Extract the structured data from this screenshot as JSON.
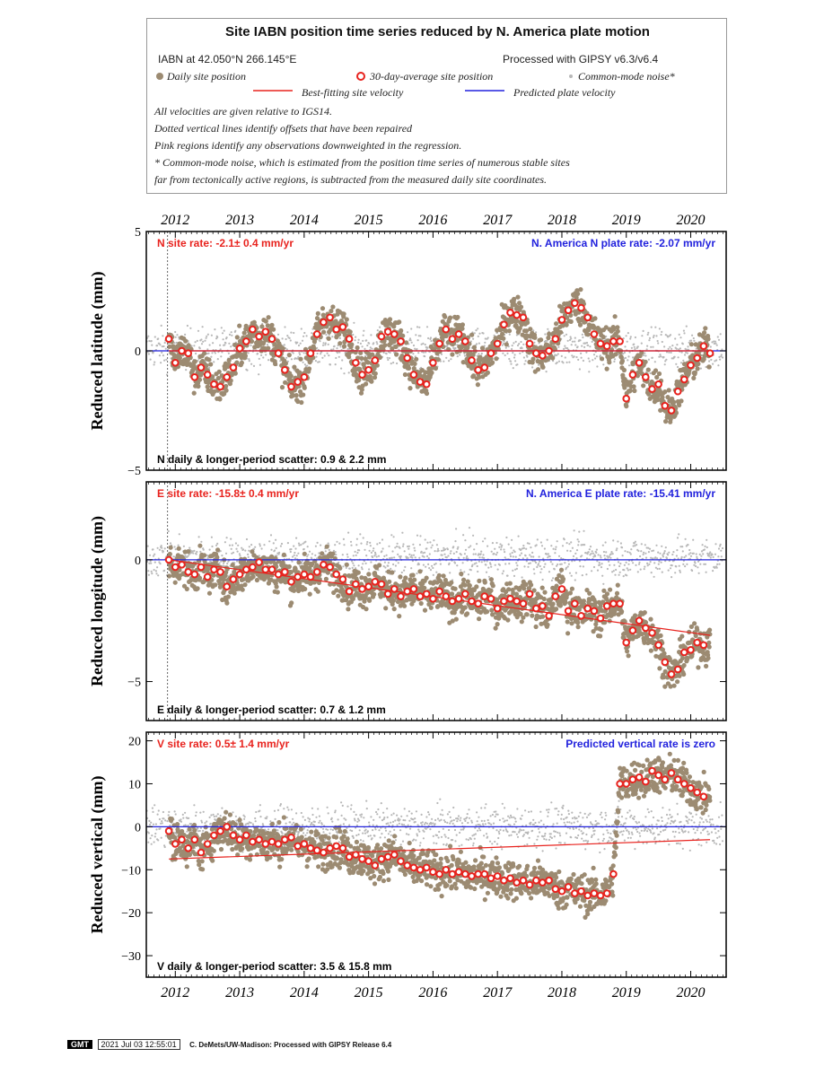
{
  "legend": {
    "title": "Site IABN position time series reduced by N. America plate motion",
    "site_location": "IABN at 42.050°N 266.145°E",
    "processing": "Processed with GIPSY v6.3/v6.4",
    "daily_label": "Daily site position",
    "avg_label": "30-day-average site position",
    "cm_label": "Common-mode noise*",
    "fit_label": "Best-fitting site velocity",
    "plate_label": "Predicted plate velocity",
    "notes": [
      "All velocities are given relative to IGS14.",
      "Dotted vertical lines identify offsets that have been repaired",
      "Pink regions identify any observations downweighted in the regression.",
      "* Common-mode noise, which is estimated from the position time series of numerous stable sites",
      "far from tectonically active regions, is subtracted from the measured daily site coordinates."
    ]
  },
  "colors": {
    "daily": "#9c8b72",
    "common_mode": "#b8b8b8",
    "average": "#e8231e",
    "fit": "#e8231e",
    "plate": "#2222dd",
    "rate_text": "#e8231e",
    "plate_text": "#2222dd"
  },
  "chart_data": [
    {
      "type": "scatter",
      "component": "N",
      "ylabel": "Reduced latitude (mm)",
      "xlim": [
        2011.55,
        2020.55
      ],
      "ylim": [
        -5,
        5
      ],
      "yticks": [
        -5,
        0,
        5
      ],
      "xticks": [
        2012,
        2013,
        2014,
        2015,
        2016,
        2017,
        2018,
        2019,
        2020
      ],
      "site_rate": "N site rate:  -2.1± 0.4 mm/yr",
      "plate_rate": "N. America N plate rate: -2.07 mm/yr",
      "scatter": "N daily & longer-period scatter:   0.9 &   2.2 mm",
      "offset_years": [
        2011.88
      ],
      "avg_points": [
        [
          2011.9,
          0.5
        ],
        [
          2012.0,
          -0.5
        ],
        [
          2012.1,
          0.0
        ],
        [
          2012.2,
          -0.1
        ],
        [
          2012.3,
          -1.1
        ],
        [
          2012.4,
          -0.7
        ],
        [
          2012.5,
          -1.0
        ],
        [
          2012.6,
          -1.4
        ],
        [
          2012.7,
          -1.5
        ],
        [
          2012.8,
          -1.1
        ],
        [
          2012.9,
          -0.7
        ],
        [
          2013.0,
          0.1
        ],
        [
          2013.1,
          0.4
        ],
        [
          2013.2,
          0.9
        ],
        [
          2013.3,
          0.6
        ],
        [
          2013.4,
          0.8
        ],
        [
          2013.5,
          0.5
        ],
        [
          2013.6,
          -0.1
        ],
        [
          2013.7,
          -0.8
        ],
        [
          2013.8,
          -1.5
        ],
        [
          2013.9,
          -1.3
        ],
        [
          2014.0,
          -1.1
        ],
        [
          2014.1,
          -0.1
        ],
        [
          2014.2,
          0.7
        ],
        [
          2014.3,
          1.2
        ],
        [
          2014.4,
          1.4
        ],
        [
          2014.5,
          0.9
        ],
        [
          2014.6,
          1.0
        ],
        [
          2014.7,
          0.5
        ],
        [
          2014.8,
          -0.5
        ],
        [
          2014.9,
          -1.0
        ],
        [
          2015.0,
          -0.8
        ],
        [
          2015.1,
          -0.4
        ],
        [
          2015.2,
          0.6
        ],
        [
          2015.3,
          0.8
        ],
        [
          2015.4,
          0.7
        ],
        [
          2015.5,
          0.4
        ],
        [
          2015.6,
          -0.3
        ],
        [
          2015.7,
          -1.0
        ],
        [
          2015.8,
          -1.3
        ],
        [
          2015.9,
          -1.4
        ],
        [
          2016.0,
          -0.5
        ],
        [
          2016.1,
          0.3
        ],
        [
          2016.2,
          0.9
        ],
        [
          2016.3,
          0.5
        ],
        [
          2016.4,
          0.7
        ],
        [
          2016.5,
          0.4
        ],
        [
          2016.6,
          -0.4
        ],
        [
          2016.7,
          -0.8
        ],
        [
          2016.8,
          -0.7
        ],
        [
          2016.9,
          -0.1
        ],
        [
          2017.0,
          0.3
        ],
        [
          2017.1,
          1.1
        ],
        [
          2017.2,
          1.6
        ],
        [
          2017.3,
          1.5
        ],
        [
          2017.4,
          1.4
        ],
        [
          2017.5,
          0.3
        ],
        [
          2017.6,
          -0.1
        ],
        [
          2017.7,
          -0.2
        ],
        [
          2017.8,
          0.0
        ],
        [
          2017.9,
          0.5
        ],
        [
          2018.0,
          1.3
        ],
        [
          2018.1,
          1.7
        ],
        [
          2018.2,
          2.0
        ],
        [
          2018.3,
          1.8
        ],
        [
          2018.4,
          1.4
        ],
        [
          2018.5,
          0.7
        ],
        [
          2018.6,
          0.3
        ],
        [
          2018.7,
          0.2
        ],
        [
          2018.8,
          0.4
        ],
        [
          2018.9,
          0.4
        ],
        [
          2019.0,
          -2.0
        ],
        [
          2019.1,
          -1.0
        ],
        [
          2019.2,
          -0.5
        ],
        [
          2019.3,
          -1.1
        ],
        [
          2019.4,
          -1.6
        ],
        [
          2019.5,
          -1.4
        ],
        [
          2019.6,
          -2.3
        ],
        [
          2019.7,
          -2.5
        ],
        [
          2019.8,
          -1.7
        ],
        [
          2019.9,
          -1.2
        ],
        [
          2020.0,
          -0.6
        ],
        [
          2020.1,
          -0.3
        ],
        [
          2020.2,
          0.2
        ],
        [
          2020.3,
          -0.1
        ]
      ],
      "fit_line": [
        [
          2011.9,
          0.0
        ],
        [
          2020.3,
          0.0
        ]
      ],
      "plate_line": [
        [
          2011.55,
          0.0
        ],
        [
          2020.55,
          0.0
        ]
      ]
    },
    {
      "type": "scatter",
      "component": "E",
      "ylabel": "Reduced longitude (mm)",
      "xlim": [
        2011.55,
        2020.55
      ],
      "ylim": [
        -6.6,
        3.2
      ],
      "yticks": [
        -5,
        0
      ],
      "xticks": [
        2012,
        2013,
        2014,
        2015,
        2016,
        2017,
        2018,
        2019,
        2020
      ],
      "site_rate": "E site rate:  -15.8± 0.4 mm/yr",
      "plate_rate": "N. America E plate rate: -15.41 mm/yr",
      "scatter": "E daily & longer-period scatter:   0.7 &   1.2 mm",
      "offset_years": [
        2011.88
      ],
      "avg_points": [
        [
          2011.9,
          0.0
        ],
        [
          2012.0,
          -0.3
        ],
        [
          2012.1,
          -0.2
        ],
        [
          2012.2,
          -0.5
        ],
        [
          2012.3,
          -0.6
        ],
        [
          2012.4,
          -0.3
        ],
        [
          2012.5,
          -0.7
        ],
        [
          2012.6,
          -0.4
        ],
        [
          2012.7,
          -0.5
        ],
        [
          2012.8,
          -1.1
        ],
        [
          2012.9,
          -0.8
        ],
        [
          2013.0,
          -0.6
        ],
        [
          2013.1,
          -0.4
        ],
        [
          2013.2,
          -0.3
        ],
        [
          2013.3,
          -0.1
        ],
        [
          2013.4,
          -0.4
        ],
        [
          2013.5,
          -0.4
        ],
        [
          2013.6,
          -0.6
        ],
        [
          2013.7,
          -0.5
        ],
        [
          2013.8,
          -0.9
        ],
        [
          2013.9,
          -0.7
        ],
        [
          2014.0,
          -0.6
        ],
        [
          2014.1,
          -0.7
        ],
        [
          2014.2,
          -0.5
        ],
        [
          2014.3,
          -0.2
        ],
        [
          2014.4,
          -0.3
        ],
        [
          2014.5,
          -0.6
        ],
        [
          2014.6,
          -0.8
        ],
        [
          2014.7,
          -1.3
        ],
        [
          2014.8,
          -1.0
        ],
        [
          2014.9,
          -1.2
        ],
        [
          2015.0,
          -1.1
        ],
        [
          2015.1,
          -0.9
        ],
        [
          2015.2,
          -1.0
        ],
        [
          2015.3,
          -1.4
        ],
        [
          2015.4,
          -1.2
        ],
        [
          2015.5,
          -1.5
        ],
        [
          2015.6,
          -1.3
        ],
        [
          2015.7,
          -1.2
        ],
        [
          2015.8,
          -1.5
        ],
        [
          2015.9,
          -1.4
        ],
        [
          2016.0,
          -1.6
        ],
        [
          2016.1,
          -1.3
        ],
        [
          2016.2,
          -1.5
        ],
        [
          2016.3,
          -1.7
        ],
        [
          2016.4,
          -1.6
        ],
        [
          2016.5,
          -1.4
        ],
        [
          2016.6,
          -1.7
        ],
        [
          2016.7,
          -1.8
        ],
        [
          2016.8,
          -1.5
        ],
        [
          2016.9,
          -1.6
        ],
        [
          2017.0,
          -2.0
        ],
        [
          2017.1,
          -1.7
        ],
        [
          2017.2,
          -1.6
        ],
        [
          2017.3,
          -1.7
        ],
        [
          2017.4,
          -1.8
        ],
        [
          2017.5,
          -1.4
        ],
        [
          2017.6,
          -2.0
        ],
        [
          2017.7,
          -1.9
        ],
        [
          2017.8,
          -2.3
        ],
        [
          2017.9,
          -1.5
        ],
        [
          2018.0,
          -1.2
        ],
        [
          2018.1,
          -2.1
        ],
        [
          2018.2,
          -1.8
        ],
        [
          2018.3,
          -2.3
        ],
        [
          2018.4,
          -2.0
        ],
        [
          2018.5,
          -2.1
        ],
        [
          2018.6,
          -2.4
        ],
        [
          2018.7,
          -1.9
        ],
        [
          2018.8,
          -1.8
        ],
        [
          2018.9,
          -1.8
        ],
        [
          2019.0,
          -3.4
        ],
        [
          2019.1,
          -2.9
        ],
        [
          2019.2,
          -2.5
        ],
        [
          2019.3,
          -2.8
        ],
        [
          2019.4,
          -3.0
        ],
        [
          2019.5,
          -3.5
        ],
        [
          2019.6,
          -4.2
        ],
        [
          2019.7,
          -4.7
        ],
        [
          2019.8,
          -4.5
        ],
        [
          2019.9,
          -3.8
        ],
        [
          2020.0,
          -3.7
        ],
        [
          2020.1,
          -3.4
        ],
        [
          2020.2,
          -3.5
        ]
      ],
      "fit_line": [
        [
          2011.9,
          0.0
        ],
        [
          2020.3,
          -3.1
        ]
      ],
      "plate_line": [
        [
          2011.55,
          0.0
        ],
        [
          2020.55,
          0.0
        ]
      ]
    },
    {
      "type": "scatter",
      "component": "V",
      "ylabel": "Reduced vertical (mm)",
      "xlim": [
        2011.55,
        2020.55
      ],
      "ylim": [
        -35,
        22
      ],
      "yticks": [
        -30,
        -20,
        -10,
        0,
        10,
        20
      ],
      "xticks": [
        2012,
        2013,
        2014,
        2015,
        2016,
        2017,
        2018,
        2019,
        2020
      ],
      "site_rate": "V site rate:   0.5± 1.4 mm/yr",
      "plate_rate": "Predicted vertical rate is zero",
      "scatter": "V daily & longer-period scatter:   3.5 &  15.8 mm",
      "offset_years": [],
      "avg_points": [
        [
          2011.9,
          -1.0
        ],
        [
          2012.0,
          -4.0
        ],
        [
          2012.1,
          -3.0
        ],
        [
          2012.2,
          -5.0
        ],
        [
          2012.3,
          -3.0
        ],
        [
          2012.4,
          -6.0
        ],
        [
          2012.5,
          -4.0
        ],
        [
          2012.6,
          -2.0
        ],
        [
          2012.7,
          -1.0
        ],
        [
          2012.8,
          0.0
        ],
        [
          2012.9,
          -2.0
        ],
        [
          2013.0,
          -3.0
        ],
        [
          2013.1,
          -2.0
        ],
        [
          2013.2,
          -3.5
        ],
        [
          2013.3,
          -3.0
        ],
        [
          2013.4,
          -4.0
        ],
        [
          2013.5,
          -3.5
        ],
        [
          2013.6,
          -4.0
        ],
        [
          2013.7,
          -3.0
        ],
        [
          2013.8,
          -2.5
        ],
        [
          2013.9,
          -4.5
        ],
        [
          2014.0,
          -4.0
        ],
        [
          2014.1,
          -5.0
        ],
        [
          2014.2,
          -5.5
        ],
        [
          2014.3,
          -6.0
        ],
        [
          2014.4,
          -5.0
        ],
        [
          2014.5,
          -4.5
        ],
        [
          2014.6,
          -5.0
        ],
        [
          2014.7,
          -7.0
        ],
        [
          2014.8,
          -6.5
        ],
        [
          2014.9,
          -7.5
        ],
        [
          2015.0,
          -8.0
        ],
        [
          2015.1,
          -9.0
        ],
        [
          2015.2,
          -7.5
        ],
        [
          2015.3,
          -7.0
        ],
        [
          2015.4,
          -6.5
        ],
        [
          2015.5,
          -8.0
        ],
        [
          2015.6,
          -9.0
        ],
        [
          2015.7,
          -9.5
        ],
        [
          2015.8,
          -10.0
        ],
        [
          2015.9,
          -9.5
        ],
        [
          2016.0,
          -10.5
        ],
        [
          2016.1,
          -11.0
        ],
        [
          2016.2,
          -10.0
        ],
        [
          2016.3,
          -11.0
        ],
        [
          2016.4,
          -10.5
        ],
        [
          2016.5,
          -11.0
        ],
        [
          2016.6,
          -11.5
        ],
        [
          2016.7,
          -11.0
        ],
        [
          2016.8,
          -11.0
        ],
        [
          2016.9,
          -12.0
        ],
        [
          2017.0,
          -11.5
        ],
        [
          2017.1,
          -12.5
        ],
        [
          2017.2,
          -12.0
        ],
        [
          2017.3,
          -13.0
        ],
        [
          2017.4,
          -12.5
        ],
        [
          2017.5,
          -13.5
        ],
        [
          2017.6,
          -12.5
        ],
        [
          2017.7,
          -13.0
        ],
        [
          2017.8,
          -12.5
        ],
        [
          2017.9,
          -14.5
        ],
        [
          2018.0,
          -15.0
        ],
        [
          2018.1,
          -14.0
        ],
        [
          2018.2,
          -15.5
        ],
        [
          2018.3,
          -15.0
        ],
        [
          2018.4,
          -16.0
        ],
        [
          2018.5,
          -15.5
        ],
        [
          2018.6,
          -16.0
        ],
        [
          2018.7,
          -15.5
        ],
        [
          2018.8,
          -11.0
        ],
        [
          2018.9,
          10.0
        ],
        [
          2019.0,
          10.0
        ],
        [
          2019.1,
          11.0
        ],
        [
          2019.2,
          11.5
        ],
        [
          2019.3,
          10.5
        ],
        [
          2019.4,
          13.0
        ],
        [
          2019.5,
          12.0
        ],
        [
          2019.6,
          11.0
        ],
        [
          2019.7,
          12.5
        ],
        [
          2019.8,
          11.0
        ],
        [
          2019.9,
          10.0
        ],
        [
          2020.0,
          9.0
        ],
        [
          2020.1,
          8.0
        ],
        [
          2020.2,
          7.0
        ]
      ],
      "fit_line": [
        [
          2011.9,
          -7.5
        ],
        [
          2020.3,
          -3.0
        ]
      ],
      "plate_line": [
        [
          2011.55,
          0.0
        ],
        [
          2020.55,
          0.0
        ]
      ]
    }
  ],
  "footer": {
    "logo": "GMT",
    "timestamp": "2021 Jul 03 12:55:01",
    "credit": "C. DeMets/UW-Madison: Processed with GIPSY Release 6.4"
  }
}
